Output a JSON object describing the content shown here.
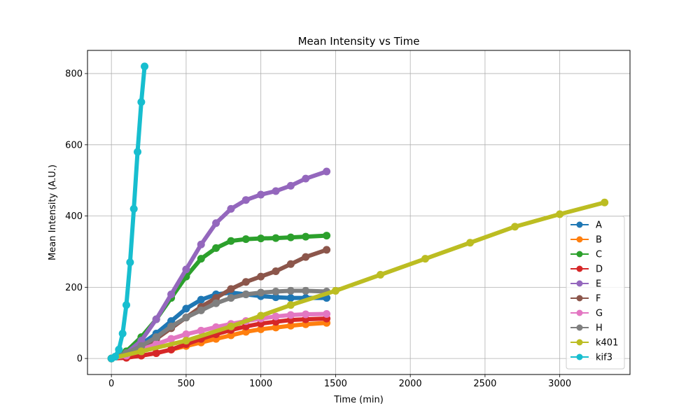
{
  "chart_data": {
    "type": "line",
    "title": "Mean Intensity vs Time",
    "xlabel": "Time (min)",
    "ylabel": "Mean Intensity (A.U.)",
    "xlim": [
      -160,
      3470
    ],
    "ylim": [
      -45,
      865
    ],
    "xticks": [
      0,
      500,
      1000,
      1500,
      2000,
      2500,
      3000
    ],
    "yticks": [
      0,
      200,
      400,
      600,
      800
    ],
    "grid": true,
    "legend_position": "lower right",
    "series": [
      {
        "name": "A",
        "color": "#1f77b4",
        "x": [
          0,
          100,
          200,
          300,
          400,
          500,
          600,
          700,
          800,
          900,
          1000,
          1100,
          1200,
          1300,
          1440
        ],
        "y": [
          0,
          15,
          40,
          70,
          105,
          140,
          165,
          180,
          185,
          180,
          175,
          172,
          170,
          170,
          170
        ]
      },
      {
        "name": "B",
        "color": "#ff7f0e",
        "x": [
          0,
          100,
          200,
          300,
          400,
          500,
          600,
          700,
          800,
          900,
          1000,
          1100,
          1200,
          1300,
          1440
        ],
        "y": [
          0,
          3,
          8,
          15,
          25,
          35,
          45,
          55,
          65,
          75,
          82,
          87,
          92,
          96,
          100
        ]
      },
      {
        "name": "C",
        "color": "#2ca02c",
        "x": [
          0,
          100,
          200,
          300,
          400,
          500,
          600,
          700,
          800,
          900,
          1000,
          1100,
          1200,
          1300,
          1440
        ],
        "y": [
          0,
          20,
          60,
          110,
          170,
          230,
          280,
          310,
          330,
          335,
          337,
          338,
          340,
          342,
          345
        ]
      },
      {
        "name": "D",
        "color": "#d62728",
        "x": [
          0,
          100,
          200,
          300,
          400,
          500,
          600,
          700,
          800,
          900,
          1000,
          1100,
          1200,
          1300,
          1440
        ],
        "y": [
          0,
          2,
          8,
          15,
          25,
          40,
          55,
          68,
          80,
          90,
          98,
          103,
          108,
          110,
          112
        ]
      },
      {
        "name": "E",
        "color": "#9467bd",
        "x": [
          0,
          100,
          200,
          300,
          400,
          500,
          600,
          700,
          800,
          900,
          1000,
          1100,
          1200,
          1300,
          1440
        ],
        "y": [
          0,
          15,
          50,
          110,
          180,
          250,
          320,
          380,
          420,
          445,
          460,
          470,
          485,
          505,
          525
        ]
      },
      {
        "name": "F",
        "color": "#8c564b",
        "x": [
          0,
          100,
          200,
          300,
          400,
          500,
          600,
          700,
          800,
          900,
          1000,
          1100,
          1200,
          1300,
          1440
        ],
        "y": [
          0,
          10,
          30,
          55,
          85,
          115,
          145,
          170,
          195,
          215,
          230,
          245,
          265,
          285,
          305
        ]
      },
      {
        "name": "G",
        "color": "#e377c2",
        "x": [
          0,
          100,
          200,
          300,
          400,
          500,
          600,
          700,
          800,
          900,
          1000,
          1100,
          1200,
          1300,
          1440
        ],
        "y": [
          0,
          8,
          25,
          40,
          55,
          68,
          78,
          88,
          97,
          105,
          112,
          118,
          122,
          124,
          125
        ]
      },
      {
        "name": "H",
        "color": "#7f7f7f",
        "x": [
          0,
          100,
          200,
          300,
          400,
          500,
          600,
          700,
          800,
          900,
          1000,
          1100,
          1200,
          1300,
          1440
        ],
        "y": [
          0,
          15,
          35,
          60,
          90,
          115,
          135,
          155,
          170,
          180,
          185,
          188,
          190,
          190,
          188
        ]
      },
      {
        "name": "k401",
        "color": "#bcbd22",
        "x": [
          0,
          200,
          500,
          800,
          1000,
          1200,
          1500,
          1800,
          2100,
          2400,
          2700,
          3000,
          3300
        ],
        "y": [
          0,
          20,
          50,
          90,
          120,
          150,
          190,
          235,
          280,
          325,
          370,
          405,
          438
        ]
      },
      {
        "name": "kif3",
        "color": "#17becf",
        "x": [
          0,
          25,
          50,
          75,
          100,
          125,
          150,
          175,
          200,
          222
        ],
        "y": [
          0,
          5,
          25,
          70,
          150,
          270,
          420,
          580,
          720,
          820
        ]
      }
    ]
  }
}
